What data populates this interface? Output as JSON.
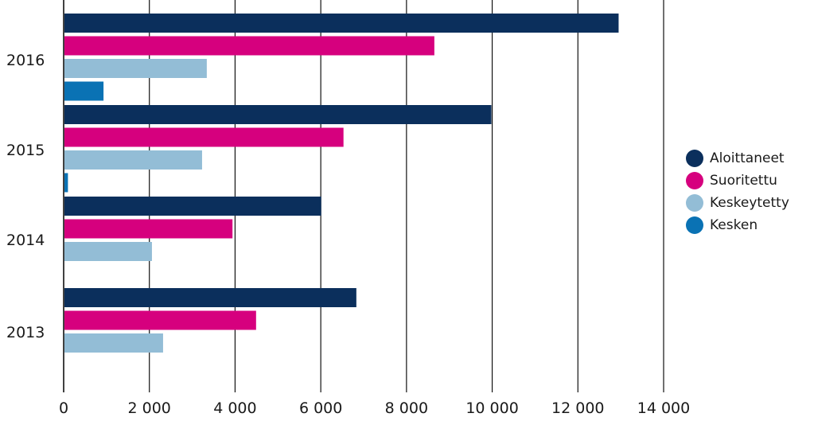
{
  "chart_data": {
    "type": "bar",
    "orientation": "horizontal",
    "title": "",
    "xlabel": "",
    "ylabel": "",
    "categories": [
      "2016",
      "2015",
      "2014",
      "2013"
    ],
    "xlim": [
      0,
      14000
    ],
    "xticks": [
      0,
      2000,
      4000,
      6000,
      8000,
      10000,
      12000,
      14000
    ],
    "xtick_labels": [
      "0",
      "2 000",
      "4 000",
      "6 000",
      "8 000",
      "10 000",
      "12 000",
      "14 000"
    ],
    "grid": "vertical",
    "legend_position": "right",
    "series": [
      {
        "name": "Aloittaneet",
        "color": "#0b2f5c",
        "values": [
          12950,
          9980,
          6010,
          6830
        ]
      },
      {
        "name": "Suoritettu",
        "color": "#d6007e",
        "values": [
          8650,
          6530,
          3940,
          4490
        ]
      },
      {
        "name": "Keskeytetty",
        "color": "#93bdd6",
        "values": [
          3340,
          3230,
          2060,
          2320
        ]
      },
      {
        "name": "Kesken",
        "color": "#0a72b4",
        "values": [
          930,
          100,
          null,
          null
        ]
      }
    ]
  }
}
